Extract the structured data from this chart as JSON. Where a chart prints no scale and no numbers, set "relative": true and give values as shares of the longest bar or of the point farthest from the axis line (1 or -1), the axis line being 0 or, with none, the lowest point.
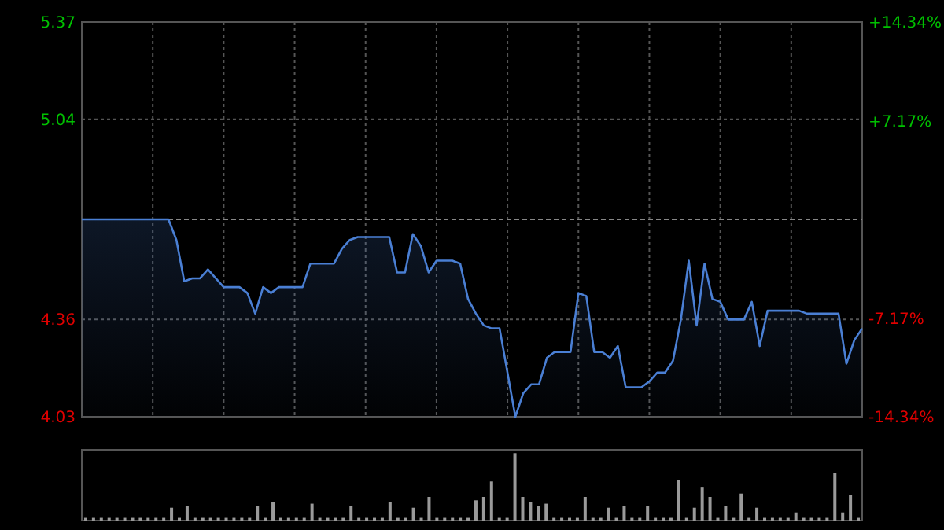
{
  "chart_data": [
    {
      "type": "area",
      "categories": [
        null,
        null,
        null,
        null,
        null,
        null,
        null,
        null,
        null,
        null,
        null,
        null,
        null,
        null,
        null,
        null,
        null,
        null,
        null,
        null,
        null,
        null,
        null,
        null,
        null,
        null,
        null,
        null,
        null,
        null,
        null,
        null,
        null,
        null,
        null,
        null,
        null,
        null,
        null,
        null,
        null,
        null,
        null,
        null,
        null,
        null,
        null,
        null,
        null,
        null,
        null,
        null,
        null,
        null,
        null,
        null,
        null,
        null,
        null,
        null,
        null,
        null,
        null,
        null,
        null,
        null,
        null,
        null,
        null,
        null,
        null,
        null,
        null,
        null,
        null,
        null,
        null,
        null,
        null,
        null,
        null,
        null,
        null,
        null,
        null,
        null,
        null,
        null,
        null,
        null,
        null,
        null,
        null,
        null,
        null,
        null,
        null,
        null,
        null,
        null
      ],
      "series": [
        {
          "color": "#4a7fd4",
          "values": [
            4.7,
            4.7,
            4.7,
            4.7,
            4.7,
            4.7,
            4.7,
            4.7,
            4.7,
            4.7,
            4.7,
            4.7,
            4.63,
            4.49,
            4.5,
            4.5,
            4.53,
            4.5,
            4.47,
            4.47,
            4.47,
            4.45,
            4.38,
            4.47,
            4.45,
            4.47,
            4.47,
            4.47,
            4.47,
            4.55,
            4.55,
            4.55,
            4.55,
            4.6,
            4.63,
            4.64,
            4.64,
            4.64,
            4.64,
            4.64,
            4.52,
            4.52,
            4.65,
            4.61,
            4.52,
            4.56,
            4.56,
            4.56,
            4.55,
            4.43,
            4.38,
            4.34,
            4.33,
            4.33,
            4.18,
            4.03,
            4.11,
            4.14,
            4.14,
            4.23,
            4.25,
            4.25,
            4.25,
            4.45,
            4.44,
            4.25,
            4.25,
            4.23,
            4.27,
            4.13,
            4.13,
            4.13,
            4.15,
            4.18,
            4.18,
            4.22,
            4.36,
            4.56,
            4.34,
            4.55,
            4.43,
            4.42,
            4.36,
            4.36,
            4.36,
            4.42,
            4.27,
            4.39,
            4.39,
            4.39,
            4.39,
            4.39,
            4.38,
            4.38,
            4.38,
            4.38,
            4.38,
            4.21,
            4.29,
            4.33
          ]
        }
      ],
      "ylim": [
        4.03,
        5.37
      ],
      "yticks": [
        5.37,
        5.04,
        4.36,
        4.03
      ],
      "y2lim": [
        -14.34,
        14.34
      ],
      "y2ticks": [
        {
          "value": 14.34,
          "label": "+14.34%"
        },
        {
          "value": 7.17,
          "label": "+7.17%"
        },
        {
          "value": -7.17,
          "label": "-7.17%"
        },
        {
          "value": -14.34,
          "label": "-14.34%"
        }
      ],
      "ref_lines": [
        {
          "axis": "y",
          "value": 4.7,
          "color": "#888888",
          "line_style": "dashed"
        }
      ],
      "grid": true
    },
    {
      "type": "bar",
      "relative": true,
      "categories": [
        null,
        null,
        null,
        null,
        null,
        null,
        null,
        null,
        null,
        null,
        null,
        null,
        null,
        null,
        null,
        null,
        null,
        null,
        null,
        null,
        null,
        null,
        null,
        null,
        null,
        null,
        null,
        null,
        null,
        null,
        null,
        null,
        null,
        null,
        null,
        null,
        null,
        null,
        null,
        null,
        null,
        null,
        null,
        null,
        null,
        null,
        null,
        null,
        null,
        null,
        null,
        null,
        null,
        null,
        null,
        null,
        null,
        null,
        null,
        null,
        null,
        null,
        null,
        null,
        null,
        null,
        null,
        null,
        null,
        null,
        null,
        null,
        null,
        null,
        null,
        null,
        null,
        null,
        null,
        null,
        null,
        null,
        null,
        null,
        null,
        null,
        null,
        null,
        null,
        null,
        null,
        null,
        null,
        null,
        null,
        null,
        null,
        null,
        null,
        null
      ],
      "series": [
        {
          "color": "#9a9a9a",
          "values": [
            0.04,
            0.04,
            0.04,
            0.04,
            0.04,
            0.04,
            0.04,
            0.04,
            0.04,
            0.04,
            0.04,
            0.19,
            0.04,
            0.22,
            0.04,
            0.04,
            0.04,
            0.04,
            0.04,
            0.04,
            0.04,
            0.04,
            0.22,
            0.04,
            0.28,
            0.04,
            0.04,
            0.04,
            0.04,
            0.25,
            0.04,
            0.04,
            0.04,
            0.04,
            0.22,
            0.04,
            0.04,
            0.04,
            0.04,
            0.28,
            0.04,
            0.04,
            0.19,
            0.04,
            0.35,
            0.04,
            0.04,
            0.04,
            0.04,
            0.04,
            0.3,
            0.35,
            0.58,
            0.04,
            0.04,
            1,
            0.35,
            0.28,
            0.22,
            0.25,
            0.04,
            0.04,
            0.04,
            0.04,
            0.35,
            0.04,
            0.04,
            0.19,
            0.04,
            0.22,
            0.04,
            0.04,
            0.22,
            0.04,
            0.04,
            0.04,
            0.6,
            0.04,
            0.19,
            0.5,
            0.35,
            0.04,
            0.22,
            0.04,
            0.4,
            0.04,
            0.19,
            0.04,
            0.04,
            0.04,
            0.04,
            0.12,
            0.04,
            0.04,
            0.04,
            0.04,
            0.7,
            0.12,
            0.38,
            0.04
          ]
        }
      ]
    }
  ]
}
